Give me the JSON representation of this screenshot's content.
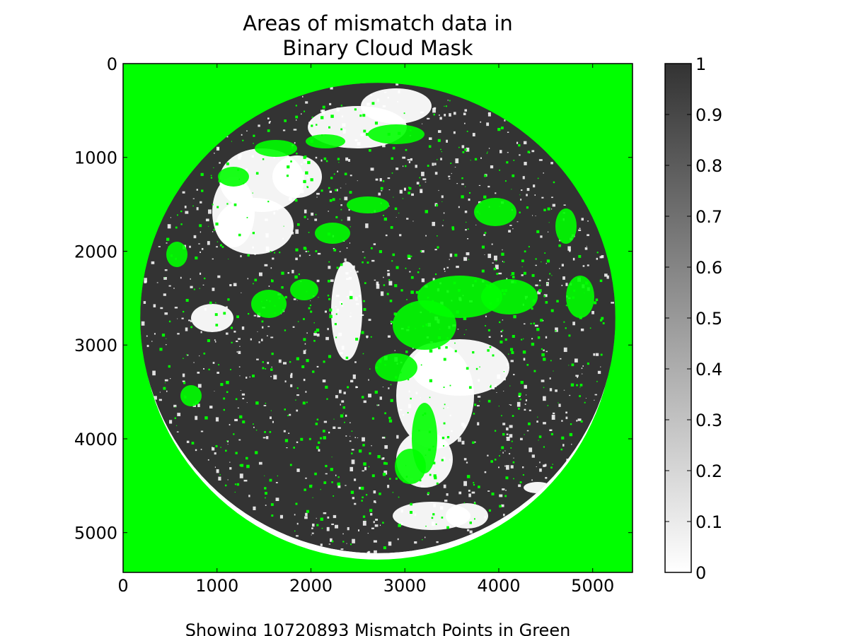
{
  "chart_data": {
    "type": "heatmap",
    "title_lines": [
      "Areas of mismatch data in",
      "Binary Cloud Mask"
    ],
    "caption": "Showing 10720893 Mismatch Points in Green",
    "xlabel": "",
    "ylabel": "",
    "xlim": [
      0,
      5424
    ],
    "ylim": [
      5424,
      0
    ],
    "x_ticks": [
      0,
      1000,
      2000,
      3000,
      4000,
      5000
    ],
    "x_tick_labels": [
      "0",
      "1000",
      "2000",
      "3000",
      "4000",
      "5000"
    ],
    "y_ticks": [
      0,
      1000,
      2000,
      3000,
      4000,
      5000
    ],
    "y_tick_labels": [
      "0",
      "1000",
      "2000",
      "3000",
      "4000",
      "5000"
    ],
    "image_extent": 5424,
    "disk": {
      "cx": 2712,
      "cy": 2712,
      "rx": 2530,
      "ry": 2530
    },
    "colormap": {
      "name": "gray_r",
      "min": 0,
      "max": 1,
      "low_color": "#ffffff",
      "high_color": "#333333"
    },
    "colorbar": {
      "range": [
        0,
        1
      ],
      "ticks": [
        0,
        0.1,
        0.2,
        0.3,
        0.4,
        0.5,
        0.6,
        0.7,
        0.8,
        0.9,
        1
      ],
      "tick_labels": [
        "0",
        "0.1",
        "0.2",
        "0.3",
        "0.4",
        "0.5",
        "0.6",
        "0.7",
        "0.8",
        "0.9",
        "1"
      ]
    },
    "mismatch_color": "#00ff00",
    "mismatch_count": 10720893,
    "grid": false,
    "legend": "none"
  }
}
